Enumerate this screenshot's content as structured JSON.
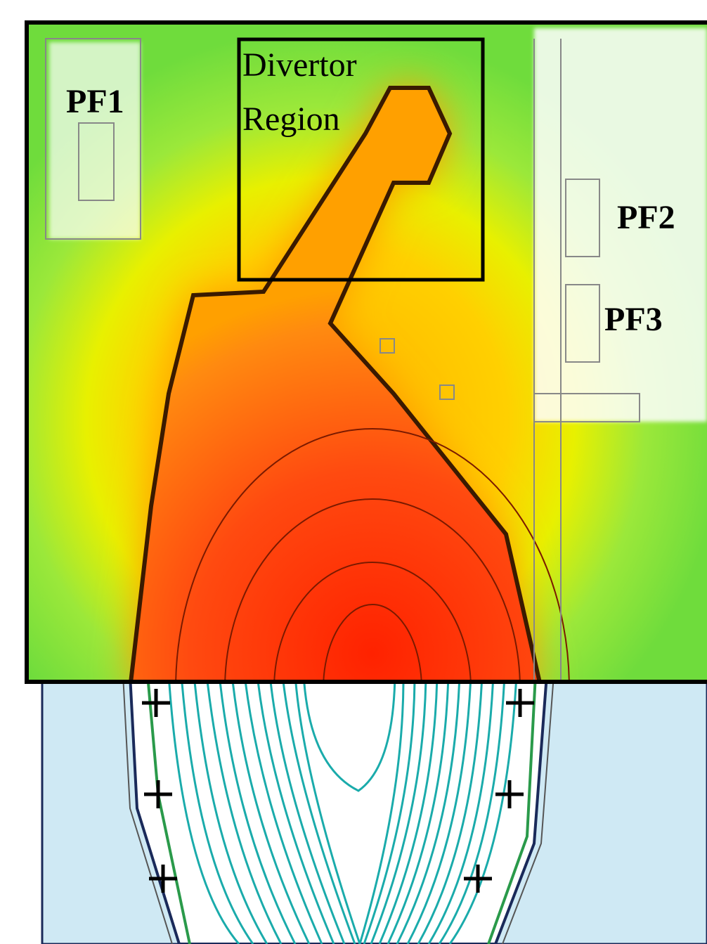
{
  "labels": {
    "pf1": "PF1",
    "pf2": "PF2",
    "pf3": "PF3",
    "divertor": [
      "Divertor",
      "Region"
    ]
  }
}
